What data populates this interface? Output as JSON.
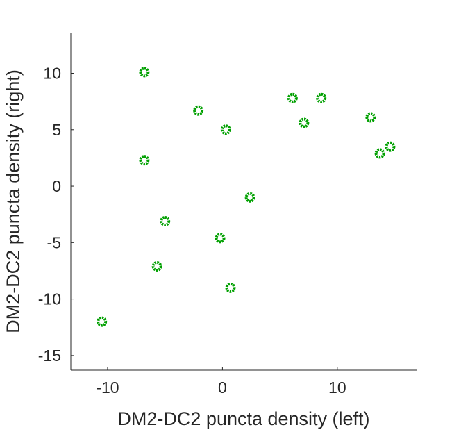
{
  "chart_data": {
    "type": "scatter",
    "title": "",
    "xlabel": "DM2-DC2 puncta density (left)",
    "ylabel": "DM2-DC2 puncta density (right)",
    "xlim": [
      -13.2,
      16.9
    ],
    "ylim": [
      -16.3,
      13.6
    ],
    "xticks": [
      -10,
      0,
      10
    ],
    "yticks": [
      -15,
      -10,
      -5,
      0,
      5,
      10
    ],
    "grid": false,
    "marker_color": "#00a000",
    "points": [
      {
        "x": -6.8,
        "y": 10.1
      },
      {
        "x": -2.1,
        "y": 6.7
      },
      {
        "x": 0.3,
        "y": 5.0
      },
      {
        "x": 6.1,
        "y": 7.8
      },
      {
        "x": 8.6,
        "y": 7.8
      },
      {
        "x": 7.1,
        "y": 5.6
      },
      {
        "x": 12.9,
        "y": 6.1
      },
      {
        "x": 13.7,
        "y": 2.9
      },
      {
        "x": 14.6,
        "y": 3.5
      },
      {
        "x": -6.8,
        "y": 2.3
      },
      {
        "x": 2.4,
        "y": -1.0
      },
      {
        "x": -5.0,
        "y": -3.1
      },
      {
        "x": -0.2,
        "y": -4.6
      },
      {
        "x": -5.7,
        "y": -7.1
      },
      {
        "x": 0.7,
        "y": -9.0
      },
      {
        "x": -10.5,
        "y": -12.0
      }
    ]
  }
}
